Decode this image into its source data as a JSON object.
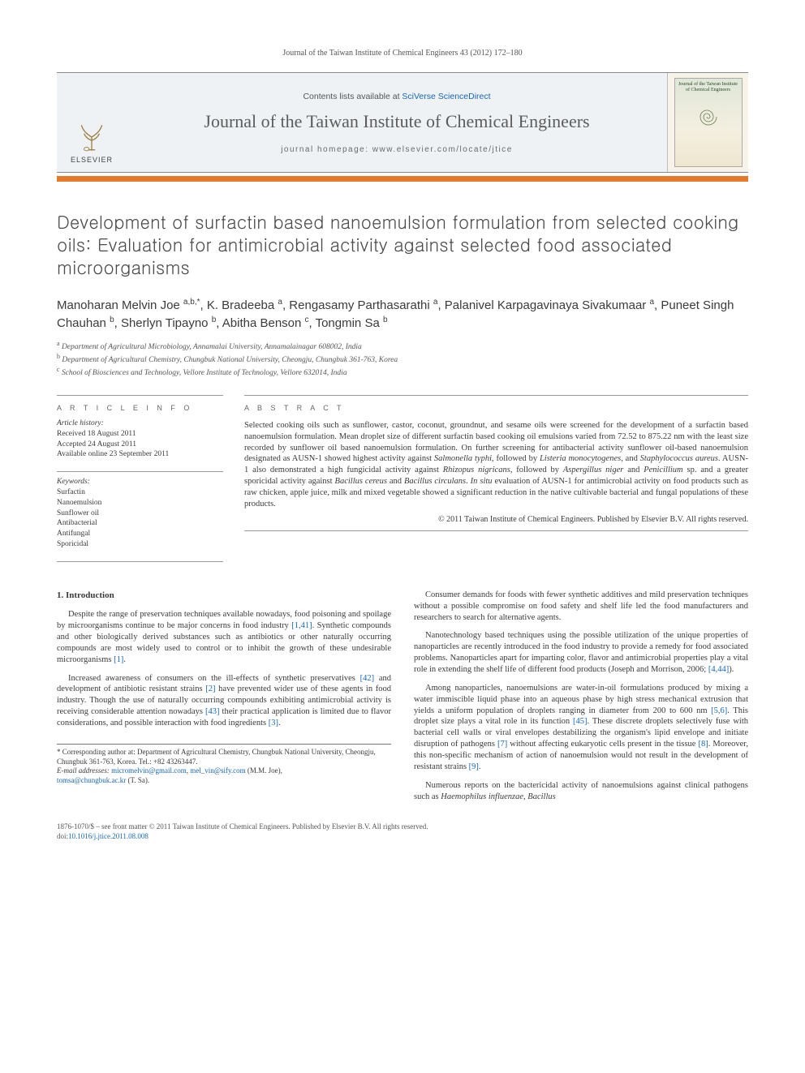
{
  "running_head": "Journal of the Taiwan Institute of Chemical Engineers 43 (2012) 172–180",
  "header": {
    "contents_pre": "Contents lists available at ",
    "contents_link": "SciVerse ScienceDirect",
    "journal": "Journal of the Taiwan Institute of Chemical Engineers",
    "homepage": "journal homepage: www.elsevier.com/locate/jtice",
    "elsevier": "ELSEVIER",
    "cover_title": "Journal of the Taiwan Institute of Chemical Engineers"
  },
  "title": "Development of surfactin based nanoemulsion formulation from selected cooking oils: Evaluation for antimicrobial activity against selected food associated microorganisms",
  "authors_html": "Manoharan Melvin Joe <sup>a,b,*</sup>, K. Bradeeba <sup>a</sup>, Rengasamy Parthasarathi <sup>a</sup>, Palanivel Karpagavinaya Sivakumaar <sup>a</sup>, Puneet Singh Chauhan <sup>b</sup>, Sherlyn Tipayno <sup>b</sup>, Abitha Benson <sup>c</sup>, Tongmin Sa <sup>b</sup>",
  "affiliations": {
    "a": "Department of Agricultural Microbiology, Annamalai University, Annamalainagar 608002, India",
    "b": "Department of Agricultural Chemistry, Chungbuk National University, Cheongju, Chungbuk 361-763, Korea",
    "c": "School of Biosciences and Technology, Vellore Institute of Technology, Vellore 632014, India"
  },
  "info": {
    "head": "A R T I C L E   I N F O",
    "history_label": "Article history:",
    "received": "Received 18 August 2011",
    "accepted": "Accepted 24 August 2011",
    "online": "Available online 23 September 2011",
    "kw_label": "Keywords:",
    "keywords": [
      "Surfactin",
      "Nanoemulsion",
      "Sunflower oil",
      "Antibacterial",
      "Antifungal",
      "Sporicidal"
    ]
  },
  "abstract": {
    "head": "A B S T R A C T",
    "text_html": "Selected cooking oils such as sunflower, castor, coconut, groundnut, and sesame oils were screened for the development of a surfactin based nanoemulsion formulation. Mean droplet size of different surfactin based cooking oil emulsions varied from 72.52 to 875.22 nm with the least size recorded by sunflower oil based nanoemulsion formulation. On further screening for antibacterial activity sunflower oil-based nanoemulsion designated as AUSN-1 showed highest activity against <em>Salmonella typhi</em>, followed by <em>Listeria monocytogenes</em>, and <em>Staphylococcus aureus</em>. AUSN-1 also demonstrated a high fungicidal activity against <em>Rhizopus nigricans</em>, followed by <em>Aspergillus niger</em> and <em>Penicillium</em> sp. and a greater sporicidal activity against <em>Bacillus cereus</em> and <em>Bacillus circulans</em>. <em>In situ</em> evaluation of AUSN-1 for antimicrobial activity on food products such as raw chicken, apple juice, milk and mixed vegetable showed a significant reduction in the native cultivable bacterial and fungal populations of these products.",
    "copyright": "© 2011 Taiwan Institute of Chemical Engineers. Published by Elsevier B.V. All rights reserved."
  },
  "section1": {
    "heading": "1. Introduction",
    "p1": "Despite the range of preservation techniques available nowadays, food poisoning and spoilage by microorganisms continue to be major concerns in food industry [1,41]. Synthetic compounds and other biologically derived substances such as antibiotics or other naturally occurring compounds are most widely used to control or to inhibit the growth of these undesirable microorganisms [1].",
    "p1_refs": [
      [
        "[1,41]",
        "[1,41]"
      ],
      [
        "[1]",
        "[1]"
      ]
    ],
    "p2": "Increased awareness of consumers on the ill-effects of synthetic preservatives [42] and development of antibiotic resistant strains [2] have prevented wider use of these agents in food industry. Though the use of naturally occurring compounds exhibiting antimicrobial activity is receiving considerable attention nowadays [43] their practical application is limited due to flavor considerations, and possible interaction with food ingredients [3].",
    "p2_refs": [
      [
        "[42]",
        "[42]"
      ],
      [
        "[2]",
        "[2]"
      ],
      [
        "[43]",
        "[43]"
      ],
      [
        "[3]",
        "[3]"
      ]
    ],
    "p3": "Consumer demands for foods with fewer synthetic additives and mild preservation techniques without a possible compromise on food safety and shelf life led the food manufacturers and researchers to search for alternative agents.",
    "p4": "Nanotechnology based techniques using the possible utilization of the unique properties of nanoparticles are recently introduced in the food industry to provide a remedy for food associated problems. Nanoparticles apart for imparting color, flavor and antimicrobial properties play a vital role in extending the shelf life of different food products (Joseph and Morrison, 2006; [4,44]).",
    "p4_refs": [
      [
        "[4,44]",
        "[4,44]"
      ]
    ],
    "p5": "Among nanoparticles, nanoemulsions are water-in-oil formulations produced by mixing a water immiscible liquid phase into an aqueous phase by high stress mechanical extrusion that yields a uniform population of droplets ranging in diameter from 200 to 600 nm [5,6]. This droplet size plays a vital role in its function [45]. These discrete droplets selectively fuse with bacterial cell walls or viral envelopes destabilizing the organism's lipid envelope and initiate disruption of pathogens [7] without affecting eukaryotic cells present in the tissue [8]. Moreover, this non-specific mechanism of action of nanoemulsion would not result in the development of resistant strains [9].",
    "p5_refs": [
      [
        "[5,6]",
        "[5,6]"
      ],
      [
        "[45]",
        "[45]"
      ],
      [
        "[7]",
        "[7]"
      ],
      [
        "[8]",
        "[8]"
      ],
      [
        "[9]",
        "[9]"
      ]
    ],
    "p6_html": "Numerous reports on the bactericidal activity of nanoemulsions against clinical pathogens such as <em>Haemophilus influenzae</em>, <em>Bacillus</em>"
  },
  "footnote": {
    "corr": "* Corresponding author at: Department of Agricultural Chemistry, Chungbuk National University, Cheongju, Chungbuk 361-763, Korea. Tel.: +82 43263447.",
    "email_label": "E-mail addresses:",
    "emails": [
      "micromelvin@gmail.com",
      "mel_vin@sify.com"
    ],
    "email1_suffix": " (M.M. Joe),",
    "email2": "tomsa@chungbuk.ac.kr",
    "email2_suffix": " (T. Sa)."
  },
  "footer": {
    "line1": "1876-1070/$ – see front matter © 2011 Taiwan Institute of Chemical Engineers. Published by Elsevier B.V. All rights reserved.",
    "doi_pre": "doi:",
    "doi": "10.1016/j.jtice.2011.08.008"
  }
}
